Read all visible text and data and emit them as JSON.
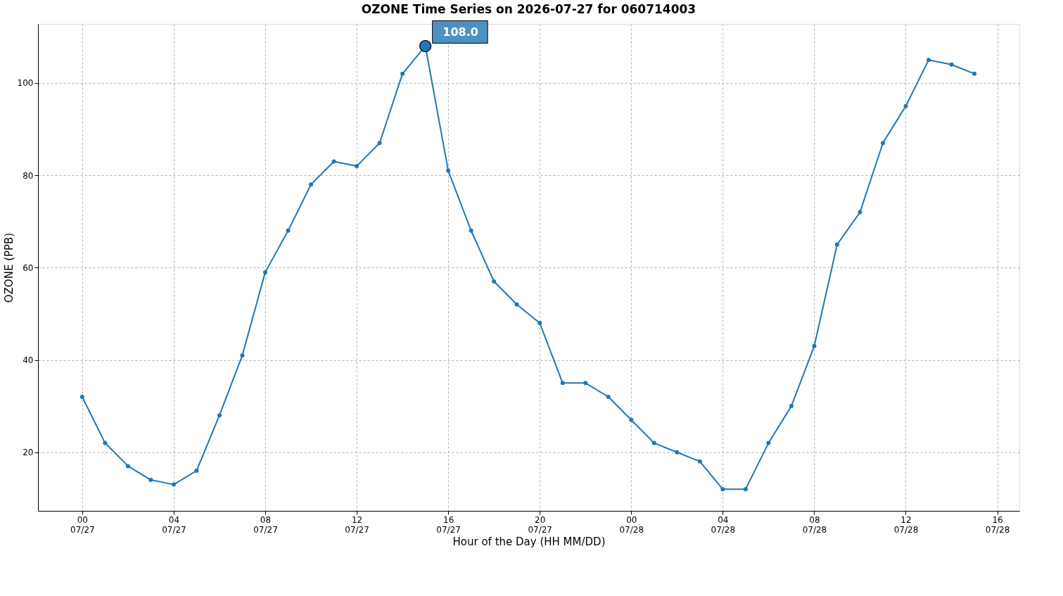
{
  "chart_data": {
    "type": "line",
    "title": "OZONE Time Series on 2026-07-27 for 060714003",
    "xlabel": "Hour of the Day (HH MM/DD)",
    "ylabel": "OZONE (PPB)",
    "x": [
      "2026-07-27T00:00",
      "2026-07-27T01:00",
      "2026-07-27T02:00",
      "2026-07-27T03:00",
      "2026-07-27T04:00",
      "2026-07-27T05:00",
      "2026-07-27T06:00",
      "2026-07-27T07:00",
      "2026-07-27T08:00",
      "2026-07-27T09:00",
      "2026-07-27T10:00",
      "2026-07-27T11:00",
      "2026-07-27T12:00",
      "2026-07-27T13:00",
      "2026-07-27T14:00",
      "2026-07-27T15:00",
      "2026-07-27T16:00",
      "2026-07-27T17:00",
      "2026-07-27T18:00",
      "2026-07-27T19:00",
      "2026-07-27T20:00",
      "2026-07-27T21:00",
      "2026-07-27T22:00",
      "2026-07-27T23:00",
      "2026-07-28T00:00",
      "2026-07-28T01:00",
      "2026-07-28T02:00",
      "2026-07-28T03:00",
      "2026-07-28T04:00",
      "2026-07-28T05:00",
      "2026-07-28T06:00",
      "2026-07-28T07:00",
      "2026-07-28T08:00",
      "2026-07-28T09:00",
      "2026-07-28T10:00",
      "2026-07-28T11:00",
      "2026-07-28T12:00",
      "2026-07-28T13:00",
      "2026-07-28T14:00",
      "2026-07-28T15:00"
    ],
    "series": [
      {
        "color": "#1f77b4",
        "values": [
          32,
          22,
          17,
          14,
          13,
          16,
          28,
          41,
          59,
          68,
          78,
          83,
          82,
          87,
          102,
          108,
          81,
          68,
          57,
          52,
          48,
          35,
          35,
          32,
          27,
          22,
          20,
          18,
          12,
          12,
          22,
          30,
          43,
          65,
          72,
          87,
          95,
          105,
          104,
          102
        ]
      }
    ],
    "marker": "circle",
    "line_style": "solid",
    "grid": true,
    "annotations": [
      {
        "text": "108.0",
        "x": "2026-07-27T15:00",
        "y": 108
      }
    ],
    "xlim": [
      "2026-07-26T22:04",
      "2026-07-28T16:58"
    ],
    "xticks": [
      {
        "value": "2026-07-27T00:00",
        "label": "00\n07/27"
      },
      {
        "value": "2026-07-27T04:00",
        "label": "04\n07/27"
      },
      {
        "value": "2026-07-27T08:00",
        "label": "08\n07/27"
      },
      {
        "value": "2026-07-27T12:00",
        "label": "12\n07/27"
      },
      {
        "value": "2026-07-27T16:00",
        "label": "16\n07/27"
      },
      {
        "value": "2026-07-27T20:00",
        "label": "20\n07/27"
      },
      {
        "value": "2026-07-28T00:00",
        "label": "00\n07/28"
      },
      {
        "value": "2026-07-28T04:00",
        "label": "04\n07/28"
      },
      {
        "value": "2026-07-28T08:00",
        "label": "08\n07/28"
      },
      {
        "value": "2026-07-28T12:00",
        "label": "12\n07/28"
      },
      {
        "value": "2026-07-28T16:00",
        "label": "16\n07/28"
      }
    ],
    "ylim": [
      7.3,
      112.8
    ],
    "yticks": [
      20,
      40,
      60,
      80,
      100
    ]
  }
}
